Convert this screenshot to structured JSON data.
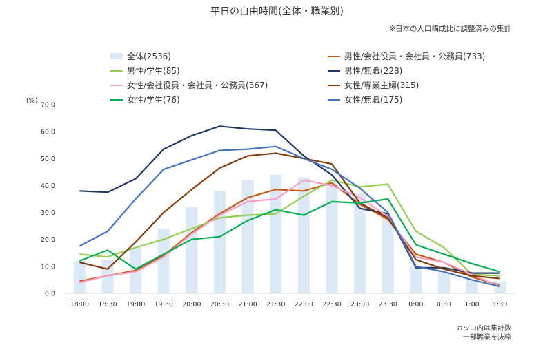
{
  "chart_data": {
    "type": "bar+line",
    "title": "平日の自由時間(全体・職業別)",
    "subtitle": "※日本の人口構成比に調整済みの集計",
    "ylabel": "(%)",
    "ylim": [
      0,
      70
    ],
    "yticks": [
      "0.0",
      "10.0",
      "20.0",
      "30.0",
      "40.0",
      "50.0",
      "60.0",
      "70.0"
    ],
    "categories": [
      "18:00",
      "18:30",
      "19:00",
      "19:30",
      "20:00",
      "20:30",
      "21:00",
      "21:30",
      "22:00",
      "22:30",
      "23:00",
      "23:30",
      "0:00",
      "0:30",
      "1:00",
      "1:30"
    ],
    "bar_series": {
      "name": "全体(2536)",
      "color": "#dbe8f5",
      "values": [
        12,
        12.5,
        17,
        24,
        32,
        38,
        42,
        44,
        43,
        41,
        37,
        28,
        10,
        8,
        5,
        4.5
      ]
    },
    "line_series": [
      {
        "name": "男性/会社役員・会社員・公務員(733)",
        "color": "#c55a11",
        "values": [
          4.5,
          6.5,
          8.5,
          14,
          22.5,
          29.5,
          35.5,
          38.5,
          38,
          41,
          33,
          27.5,
          14.5,
          11.5,
          6,
          3
        ]
      },
      {
        "name": "男性/学生(85)",
        "color": "#92d050",
        "values": [
          14.5,
          13.5,
          17,
          20,
          24,
          28,
          29,
          29.5,
          36,
          42,
          39.5,
          40.5,
          23,
          17,
          7,
          6.5
        ]
      },
      {
        "name": "男性/無職(228)",
        "color": "#203864",
        "values": [
          38,
          37.5,
          42.5,
          53.5,
          58.5,
          62,
          61,
          60.5,
          51,
          44,
          31.5,
          29.5,
          9.5,
          9.5,
          7.5,
          7.5
        ]
      },
      {
        "name": "女性/会社役員・会社員・公務員(367)",
        "color": "#ff9cc5",
        "values": [
          4,
          6.5,
          8,
          13.5,
          22,
          29,
          34,
          35,
          42,
          40,
          35.5,
          28.5,
          13.5,
          11.5,
          7,
          2.5
        ]
      },
      {
        "name": "女性/専業主婦(315)",
        "color": "#843c0c",
        "values": [
          11.5,
          9,
          19,
          30,
          38.5,
          46.5,
          51,
          52,
          50,
          48,
          33.5,
          28,
          12.5,
          9,
          6.5,
          5.5
        ]
      },
      {
        "name": "女性/学生(76)",
        "color": "#00b050",
        "values": [
          12,
          16,
          9,
          14.5,
          20,
          21,
          27,
          31,
          29,
          34,
          33.5,
          35,
          18,
          14.5,
          11,
          8
        ]
      },
      {
        "name": "女性/無職(175)",
        "color": "#4472c4",
        "values": [
          17.5,
          23,
          35,
          46,
          49.5,
          53,
          53.5,
          54.5,
          50,
          46,
          39,
          30,
          10,
          8,
          5,
          2.5
        ]
      }
    ],
    "legend_position": "top",
    "grid": false
  },
  "notes": {
    "line1": "カッコ内は集計数",
    "line2": "一部職業を抜粋"
  }
}
